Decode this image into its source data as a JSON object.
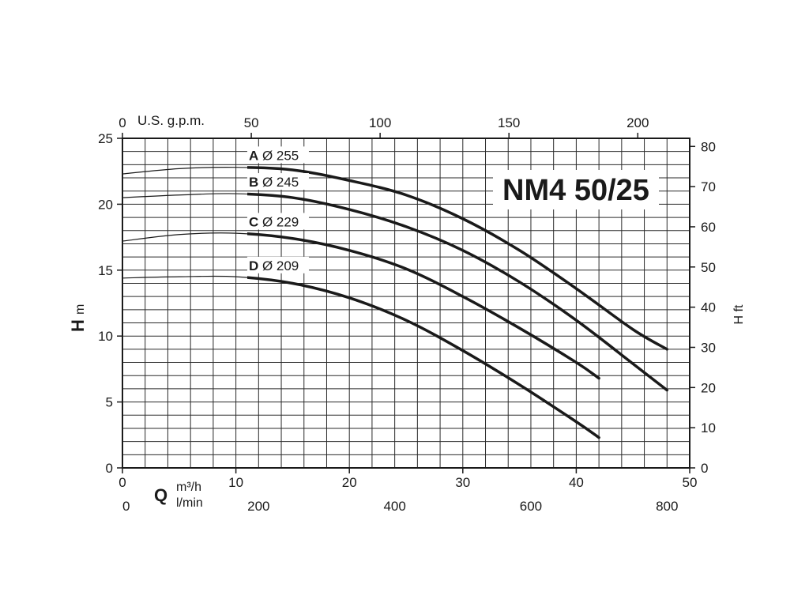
{
  "chart_data": {
    "type": "line",
    "title": "NM4 50/25",
    "xlabel": {
      "symbol": "Q",
      "unit_primary": "m³/h",
      "unit_secondary": "l/min"
    },
    "ylabel": {
      "symbol": "H",
      "unit": "m"
    },
    "y2label": "H ft",
    "x2label": "U.S. g.p.m.",
    "xlim": [
      0,
      50
    ],
    "ylim": [
      0,
      25
    ],
    "x_ticks": [
      0,
      10,
      20,
      30,
      40,
      50
    ],
    "y_ticks": [
      0,
      5,
      10,
      15,
      20,
      25
    ],
    "y2_ticks": [
      0,
      10,
      20,
      30,
      40,
      50,
      60,
      70,
      80
    ],
    "x2_ticks_gpm": [
      0,
      50,
      100,
      150,
      200
    ],
    "x3_ticks_lmin": [
      0,
      200,
      400,
      600,
      800
    ],
    "grid": true,
    "series": [
      {
        "name": "A",
        "label_letter": "A",
        "label_diameter": "Ø 255",
        "x": [
          0,
          5,
          10,
          15,
          20,
          25,
          30,
          35,
          40,
          45,
          48
        ],
        "y": [
          22.3,
          22.7,
          22.8,
          22.6,
          21.8,
          20.7,
          18.9,
          16.5,
          13.6,
          10.5,
          9.0
        ]
      },
      {
        "name": "B",
        "label_letter": "B",
        "label_diameter": "Ø 245",
        "x": [
          0,
          5,
          10,
          15,
          20,
          25,
          30,
          35,
          40,
          45,
          48
        ],
        "y": [
          20.5,
          20.7,
          20.8,
          20.5,
          19.6,
          18.3,
          16.5,
          14.1,
          11.2,
          7.9,
          5.9
        ]
      },
      {
        "name": "C",
        "label_letter": "C",
        "label_diameter": "Ø 229",
        "x": [
          0,
          5,
          10,
          15,
          20,
          25,
          30,
          35,
          40,
          42
        ],
        "y": [
          17.2,
          17.7,
          17.8,
          17.4,
          16.5,
          15.1,
          13.0,
          10.6,
          8.0,
          6.8
        ]
      },
      {
        "name": "D",
        "label_letter": "D",
        "label_diameter": "Ø 209",
        "x": [
          0,
          5,
          10,
          15,
          20,
          25,
          30,
          35,
          40,
          42
        ],
        "y": [
          14.4,
          14.5,
          14.5,
          14.0,
          12.9,
          11.2,
          8.9,
          6.3,
          3.5,
          2.3
        ]
      }
    ]
  }
}
